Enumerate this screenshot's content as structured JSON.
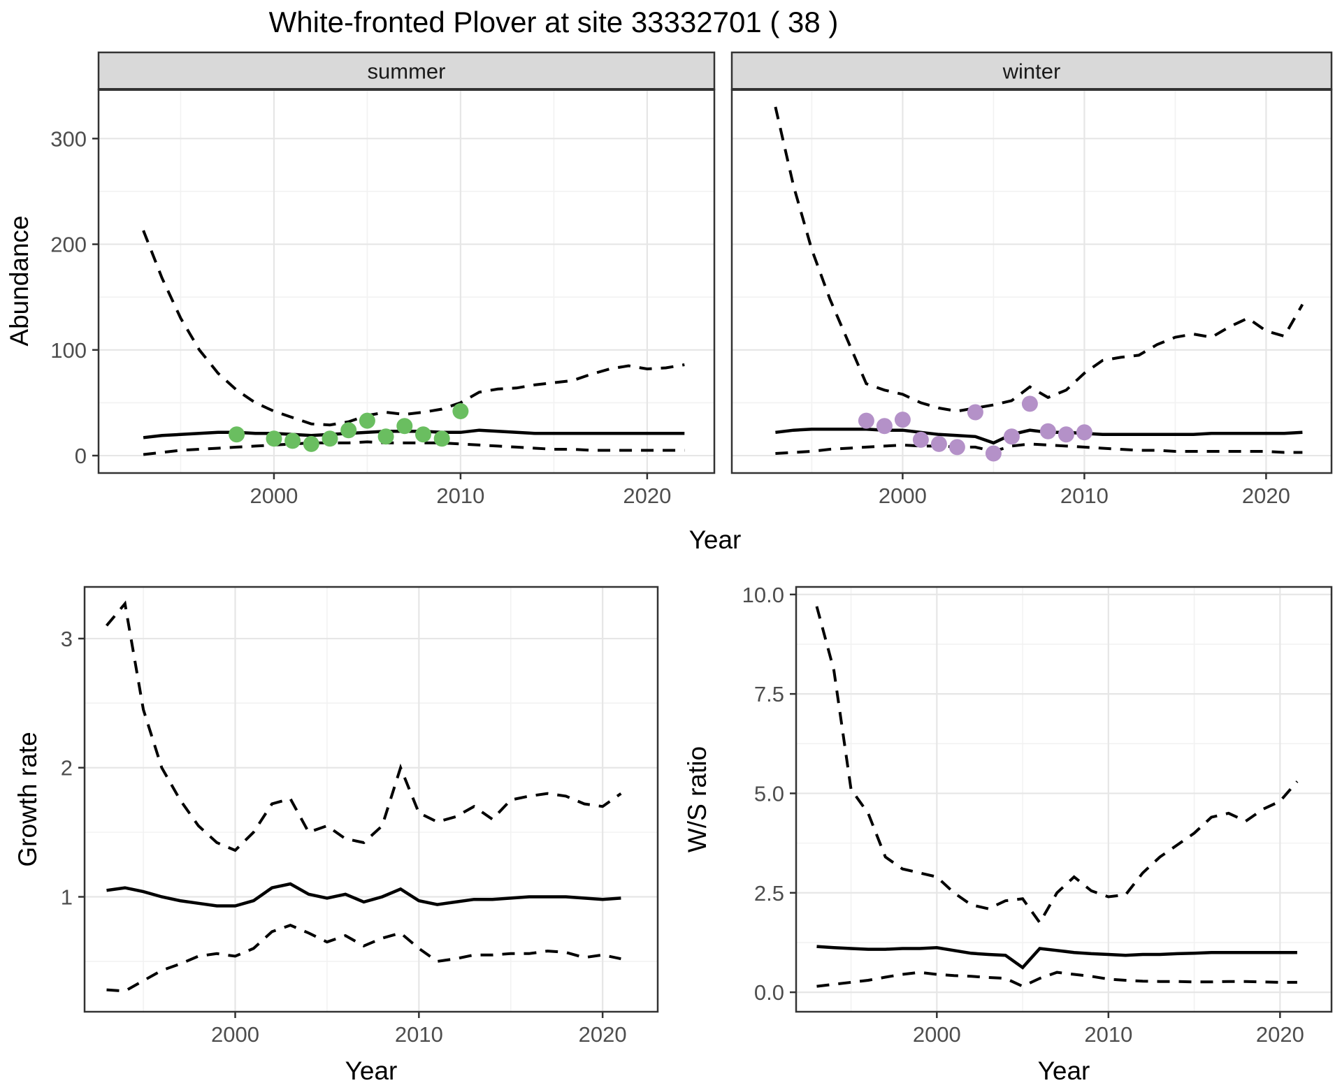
{
  "title": "White-fronted Plover at site 33332701 ( 38 )",
  "axis_titles": {
    "x": "Year",
    "abundance": "Abundance",
    "growth": "Growth rate",
    "ws": "W/S ratio"
  },
  "facets": {
    "summer_label": "summer",
    "winter_label": "winter"
  },
  "colors": {
    "summer_points": "#6abe60",
    "winter_points": "#b491c8",
    "line": "#000000",
    "strip_bg": "#d9d9d9",
    "panel_border": "#333333",
    "grid_major": "#e6e6e6",
    "grid_minor": "#f2f2f2",
    "axis_text": "#4d4d4d",
    "text": "#1a1a1a",
    "background": "#ffffff"
  },
  "chart_data": [
    {
      "id": "summer",
      "type": "line",
      "facet_label": "summer",
      "xlabel": "Year",
      "ylabel": "Abundance",
      "x_domain": [
        1990.6,
        2023.6
      ],
      "y_domain": [
        -16.5,
        346.5
      ],
      "x_ticks": [
        2000,
        2010,
        2020
      ],
      "x_tick_labels": [
        "2000",
        "2010",
        "2020"
      ],
      "x_minor": [
        1995,
        2005,
        2015
      ],
      "y_ticks": [
        0,
        100,
        200,
        300
      ],
      "y_tick_labels": [
        "0",
        "100",
        "200",
        "300"
      ],
      "y_minor": [
        50,
        150,
        250
      ],
      "x_start_year": 1993,
      "series": [
        {
          "name": "upper_95ci",
          "style": "dashed",
          "values": [
            213,
            168,
            130,
            100,
            78,
            62,
            50,
            42,
            36,
            30,
            29,
            32,
            38,
            41,
            39,
            41,
            44,
            50,
            60,
            63,
            64,
            67,
            69,
            71,
            77,
            82,
            85,
            82,
            83,
            86
          ]
        },
        {
          "name": "median",
          "style": "solid",
          "values": [
            17,
            19,
            20,
            21,
            22,
            22,
            21,
            21,
            20,
            19,
            20,
            21,
            22,
            23,
            23,
            23,
            22,
            22,
            24,
            23,
            22,
            21,
            21,
            21,
            21,
            21,
            21,
            21,
            21,
            21
          ]
        },
        {
          "name": "lower_95ci",
          "style": "dashed",
          "values": [
            1,
            3,
            5,
            6,
            7,
            8,
            9,
            10,
            11,
            12,
            12,
            12,
            13,
            12,
            12,
            12,
            12,
            11,
            10,
            9,
            8,
            7,
            6,
            6,
            5,
            5,
            5,
            5,
            5,
            5
          ]
        }
      ],
      "points": {
        "name": "summer_observations",
        "color": "#6abe60",
        "pairs": [
          [
            1998,
            20
          ],
          [
            2000,
            16
          ],
          [
            2001,
            14
          ],
          [
            2002,
            11
          ],
          [
            2003,
            16
          ],
          [
            2004,
            24
          ],
          [
            2005,
            33
          ],
          [
            2006,
            18
          ],
          [
            2007,
            28
          ],
          [
            2008,
            20
          ],
          [
            2009,
            16
          ],
          [
            2010,
            42
          ]
        ]
      }
    },
    {
      "id": "winter",
      "type": "line",
      "facet_label": "winter",
      "xlabel": "Year",
      "ylabel": "Abundance",
      "x_domain": [
        1990.6,
        2023.6
      ],
      "y_domain": [
        -16.5,
        346.5
      ],
      "x_ticks": [
        2000,
        2010,
        2020
      ],
      "x_tick_labels": [
        "2000",
        "2010",
        "2020"
      ],
      "x_minor": [
        1995,
        2005,
        2015
      ],
      "y_ticks": [
        0,
        100,
        200,
        300
      ],
      "y_tick_labels": [
        "0",
        "100",
        "200",
        "300"
      ],
      "y_minor": [
        50,
        150,
        250
      ],
      "x_start_year": 1993,
      "series": [
        {
          "name": "upper_95ci",
          "style": "dashed",
          "values": [
            330,
            255,
            195,
            148,
            108,
            68,
            62,
            58,
            50,
            45,
            42,
            45,
            48,
            52,
            65,
            55,
            62,
            78,
            90,
            93,
            95,
            105,
            112,
            115,
            112,
            122,
            130,
            118,
            113,
            143
          ]
        },
        {
          "name": "median",
          "style": "solid",
          "values": [
            22,
            24,
            25,
            25,
            25,
            25,
            24,
            24,
            22,
            20,
            19,
            18,
            12,
            20,
            24,
            22,
            22,
            21,
            20,
            20,
            20,
            20,
            20,
            20,
            21,
            21,
            21,
            21,
            21,
            22
          ]
        },
        {
          "name": "lower_95ci",
          "style": "dashed",
          "values": [
            2,
            3,
            4,
            6,
            7,
            8,
            9,
            10,
            9,
            9,
            8,
            8,
            4,
            9,
            11,
            10,
            9,
            8,
            7,
            6,
            5,
            5,
            4,
            4,
            4,
            4,
            4,
            4,
            3,
            3
          ]
        }
      ],
      "points": {
        "name": "winter_observations",
        "color": "#b491c8",
        "pairs": [
          [
            1998,
            33
          ],
          [
            1999,
            28
          ],
          [
            2000,
            34
          ],
          [
            2001,
            15
          ],
          [
            2002,
            11
          ],
          [
            2003,
            8
          ],
          [
            2004,
            41
          ],
          [
            2005,
            2
          ],
          [
            2006,
            18
          ],
          [
            2007,
            49
          ],
          [
            2008,
            23
          ],
          [
            2009,
            20
          ],
          [
            2010,
            22
          ]
        ]
      }
    },
    {
      "id": "growth",
      "type": "line",
      "facet_label": null,
      "xlabel": "Year",
      "ylabel": "Growth rate",
      "x_domain": [
        1991.8,
        2023.0
      ],
      "y_domain": [
        0.11,
        3.4
      ],
      "x_ticks": [
        2000,
        2010,
        2020
      ],
      "x_tick_labels": [
        "2000",
        "2010",
        "2020"
      ],
      "x_minor": [
        1995,
        2005,
        2015
      ],
      "y_ticks": [
        1,
        2,
        3
      ],
      "y_tick_labels": [
        "1",
        "2",
        "3"
      ],
      "y_minor": [
        0.5,
        1.5,
        2.5
      ],
      "x_start_year": 1993,
      "series": [
        {
          "name": "upper_95ci",
          "style": "dashed",
          "values": [
            3.1,
            3.27,
            2.45,
            2.0,
            1.75,
            1.55,
            1.42,
            1.36,
            1.5,
            1.72,
            1.76,
            1.5,
            1.55,
            1.45,
            1.42,
            1.55,
            2.0,
            1.65,
            1.58,
            1.62,
            1.7,
            1.6,
            1.75,
            1.78,
            1.8,
            1.78,
            1.72,
            1.7,
            1.8
          ]
        },
        {
          "name": "median",
          "style": "solid",
          "values": [
            1.05,
            1.07,
            1.04,
            1.0,
            0.97,
            0.95,
            0.93,
            0.93,
            0.97,
            1.07,
            1.1,
            1.02,
            0.99,
            1.02,
            0.96,
            1.0,
            1.06,
            0.97,
            0.94,
            0.96,
            0.98,
            0.98,
            0.99,
            1.0,
            1.0,
            1.0,
            0.99,
            0.98,
            0.99
          ]
        },
        {
          "name": "lower_95ci",
          "style": "dashed",
          "values": [
            0.28,
            0.27,
            0.35,
            0.43,
            0.48,
            0.54,
            0.56,
            0.54,
            0.6,
            0.73,
            0.78,
            0.72,
            0.65,
            0.7,
            0.62,
            0.68,
            0.72,
            0.6,
            0.5,
            0.52,
            0.55,
            0.55,
            0.56,
            0.56,
            0.58,
            0.57,
            0.53,
            0.55,
            0.52
          ]
        }
      ],
      "points": null
    },
    {
      "id": "ws",
      "type": "line",
      "facet_label": null,
      "xlabel": "Year",
      "ylabel": "W/S ratio",
      "x_domain": [
        1991.8,
        2023.0
      ],
      "y_domain": [
        -0.49,
        10.19
      ],
      "x_ticks": [
        2000,
        2010,
        2020
      ],
      "x_tick_labels": [
        "2000",
        "2010",
        "2020"
      ],
      "x_minor": [
        1995,
        2005,
        2015
      ],
      "y_ticks": [
        0,
        2.5,
        5,
        7.5,
        10
      ],
      "y_tick_labels": [
        "0.0",
        "2.5",
        "5.0",
        "7.5",
        "10.0"
      ],
      "y_minor": [
        1.25,
        3.75,
        6.25,
        8.75
      ],
      "x_start_year": 1993,
      "series": [
        {
          "name": "upper_95ci",
          "style": "dashed",
          "values": [
            9.7,
            8.1,
            5.1,
            4.5,
            3.4,
            3.1,
            3.0,
            2.9,
            2.5,
            2.2,
            2.1,
            2.3,
            2.35,
            1.75,
            2.5,
            2.9,
            2.55,
            2.4,
            2.45,
            3.0,
            3.4,
            3.7,
            4.0,
            4.4,
            4.5,
            4.3,
            4.6,
            4.8,
            5.3
          ]
        },
        {
          "name": "median",
          "style": "solid",
          "values": [
            1.15,
            1.12,
            1.1,
            1.08,
            1.08,
            1.1,
            1.1,
            1.12,
            1.05,
            0.98,
            0.95,
            0.93,
            0.62,
            1.1,
            1.05,
            1.0,
            0.97,
            0.95,
            0.93,
            0.95,
            0.95,
            0.97,
            0.98,
            1.0,
            1.0,
            1.0,
            1.0,
            1.0,
            1.0
          ]
        },
        {
          "name": "lower_95ci",
          "style": "dashed",
          "values": [
            0.15,
            0.2,
            0.25,
            0.3,
            0.38,
            0.45,
            0.5,
            0.45,
            0.42,
            0.4,
            0.37,
            0.35,
            0.15,
            0.35,
            0.5,
            0.45,
            0.4,
            0.33,
            0.3,
            0.28,
            0.27,
            0.27,
            0.26,
            0.26,
            0.27,
            0.27,
            0.26,
            0.25,
            0.25
          ]
        }
      ],
      "points": null
    }
  ]
}
